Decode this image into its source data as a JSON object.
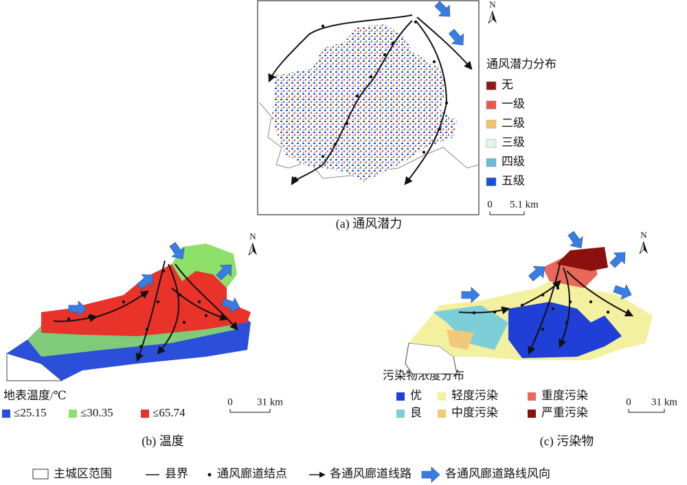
{
  "panels": [
    {
      "caption": "(a) 通风潜力",
      "north": "N",
      "legend_title": "通风潜力分布",
      "legend": [
        {
          "label": "无",
          "color": "#8b1a1a"
        },
        {
          "label": "一级",
          "color": "#e8594a"
        },
        {
          "label": "二级",
          "color": "#f2c46e"
        },
        {
          "label": "三级",
          "color": "#dff5ee"
        },
        {
          "label": "四级",
          "color": "#6bb8d8"
        },
        {
          "label": "五级",
          "color": "#1c4fd8"
        }
      ],
      "scale": {
        "start": "0",
        "end": "5.1 km"
      }
    },
    {
      "caption": "(b) 温度",
      "north": "N",
      "legend_title": "地表温度/℃",
      "legend": [
        {
          "label": "≤25.15",
          "color": "#2b4fd8"
        },
        {
          "label": "≤30.35",
          "color": "#8ee06a"
        },
        {
          "label": "≤65.74",
          "color": "#e8322a"
        }
      ],
      "scale": {
        "start": "0",
        "end": "31 km"
      }
    },
    {
      "caption": "(c) 污染物",
      "north": "N",
      "legend_title": "污染物浓度分布",
      "legend": [
        {
          "label": "优",
          "color": "#1f3fd6"
        },
        {
          "label": "良",
          "color": "#7ccfd8"
        },
        {
          "label": "轻度污染",
          "color": "#f3f0a0"
        },
        {
          "label": "中度污染",
          "color": "#f2c97a"
        },
        {
          "label": "重度污染",
          "color": "#e8685a"
        },
        {
          "label": "严重污染",
          "color": "#8b1010"
        }
      ],
      "scale": {
        "start": "0",
        "end": "31 km"
      }
    }
  ],
  "footer_legend": [
    "主城区范围",
    "县界",
    "通风廊道结点",
    "各通风廊道线路",
    "各通风廊道路线风向"
  ]
}
